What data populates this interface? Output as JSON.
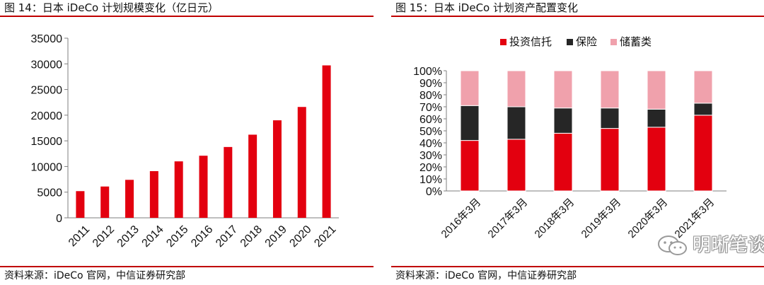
{
  "left": {
    "title": "图 14：日本 iDeCo 计划规模变化（亿日元）",
    "source": "资料来源：iDeCo 官网，中信证券研究部"
  },
  "right": {
    "title": "图 15：日本 iDeCo 计划资产配置变化",
    "source": "资料来源：iDeCo 官网，中信证券研究部",
    "watermark": "明晰笔谈"
  },
  "colors": {
    "red": "#e3000f",
    "dark": "#262626",
    "pink": "#f0a1ac",
    "rule": "#c00000"
  },
  "chart_data": [
    {
      "type": "bar",
      "categories": [
        "2011",
        "2012",
        "2013",
        "2014",
        "2015",
        "2016",
        "2017",
        "2018",
        "2019",
        "2020",
        "2021"
      ],
      "values": [
        5200,
        6100,
        7400,
        9100,
        11000,
        12100,
        13800,
        16200,
        19000,
        21600,
        29700
      ],
      "ylim": [
        0,
        35000
      ],
      "yticks": [
        0,
        5000,
        10000,
        15000,
        20000,
        25000,
        30000,
        35000
      ],
      "grid": false
    },
    {
      "type": "bar",
      "stacked": true,
      "categories": [
        "2016年3月",
        "2017年3月",
        "2018年3月",
        "2019年3月",
        "2020年3月",
        "2021年3月"
      ],
      "series": [
        {
          "name": "投资信托",
          "values": [
            42,
            43,
            48,
            52,
            53,
            63
          ]
        },
        {
          "name": "保险",
          "values": [
            29,
            27,
            21,
            17,
            15,
            10
          ]
        },
        {
          "name": "储蓄类",
          "values": [
            29,
            30,
            31,
            31,
            32,
            27
          ]
        }
      ],
      "ylim": [
        0,
        100
      ],
      "yticks": [
        "0%",
        "10%",
        "20%",
        "30%",
        "40%",
        "50%",
        "60%",
        "70%",
        "80%",
        "90%",
        "100%"
      ],
      "legend": "top",
      "grid": false
    }
  ]
}
